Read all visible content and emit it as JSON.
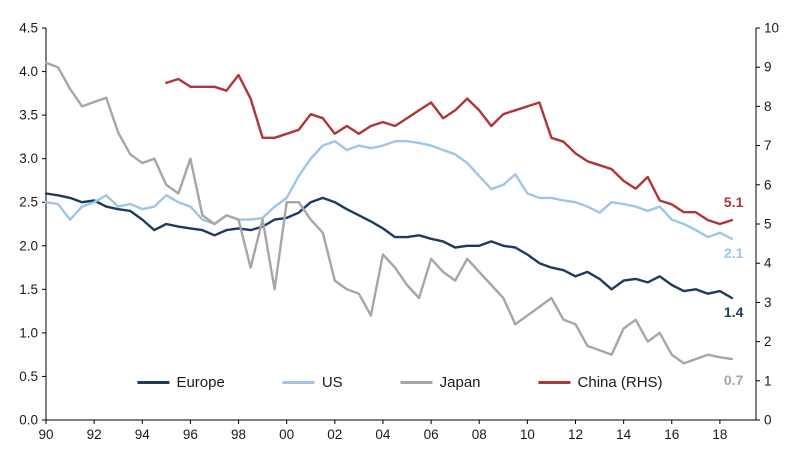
{
  "chart_data": {
    "type": "line",
    "title": "",
    "xlabel": "",
    "ylabel_left": "",
    "ylabel_right": "",
    "grid": false,
    "legend_position": "bottom-inside",
    "x_range": [
      1990,
      2019.5
    ],
    "y_left_range": [
      0,
      4.5
    ],
    "y_right_range": [
      0,
      10
    ],
    "x_tick_values": [
      1990,
      1992,
      1994,
      1996,
      1998,
      2000,
      2002,
      2004,
      2006,
      2008,
      2010,
      2012,
      2014,
      2016,
      2018
    ],
    "x_tick_labels": [
      "90",
      "92",
      "94",
      "96",
      "98",
      "00",
      "02",
      "04",
      "06",
      "08",
      "10",
      "12",
      "14",
      "16",
      "18"
    ],
    "y_left_tick_values": [
      0,
      0.5,
      1.0,
      1.5,
      2.0,
      2.5,
      3.0,
      3.5,
      4.0,
      4.5
    ],
    "y_left_tick_labels": [
      "0.0",
      "0.5",
      "1.0",
      "1.5",
      "2.0",
      "2.5",
      "3.0",
      "3.5",
      "4.0",
      "4.5"
    ],
    "y_right_tick_values": [
      0,
      1,
      2,
      3,
      4,
      5,
      6,
      7,
      8,
      9,
      10
    ],
    "y_right_tick_labels": [
      "0",
      "1",
      "2",
      "3",
      "4",
      "5",
      "6",
      "7",
      "8",
      "9",
      "10"
    ],
    "x": [
      1990,
      1990.5,
      1991,
      1991.5,
      1992,
      1992.5,
      1993,
      1993.5,
      1994,
      1994.5,
      1995,
      1995.5,
      1996,
      1996.5,
      1997,
      1997.5,
      1998,
      1998.5,
      1999,
      1999.5,
      2000,
      2000.5,
      2001,
      2001.5,
      2002,
      2002.5,
      2003,
      2003.5,
      2004,
      2004.5,
      2005,
      2005.5,
      2006,
      2006.5,
      2007,
      2007.5,
      2008,
      2008.5,
      2009,
      2009.5,
      2010,
      2010.5,
      2011,
      2011.5,
      2012,
      2012.5,
      2013,
      2013.5,
      2014,
      2014.5,
      2015,
      2015.5,
      2016,
      2016.5,
      2017,
      2017.5,
      2018,
      2018.5
    ],
    "series": [
      {
        "name": "Europe",
        "axis": "left",
        "color": "#1f3a5f",
        "end_label": "1.4",
        "y": [
          2.6,
          2.58,
          2.55,
          2.5,
          2.52,
          2.45,
          2.42,
          2.4,
          2.3,
          2.18,
          2.25,
          2.22,
          2.2,
          2.18,
          2.12,
          2.18,
          2.2,
          2.18,
          2.22,
          2.3,
          2.32,
          2.38,
          2.5,
          2.55,
          2.5,
          2.42,
          2.35,
          2.28,
          2.2,
          2.1,
          2.1,
          2.12,
          2.08,
          2.05,
          1.98,
          2.0,
          2.0,
          2.05,
          2.0,
          1.98,
          1.9,
          1.8,
          1.75,
          1.72,
          1.65,
          1.7,
          1.62,
          1.5,
          1.6,
          1.62,
          1.58,
          1.65,
          1.55,
          1.48,
          1.5,
          1.45,
          1.48,
          1.4
        ]
      },
      {
        "name": "US",
        "axis": "left",
        "color": "#9fc5e8",
        "end_label": "2.1",
        "y": [
          2.5,
          2.48,
          2.3,
          2.45,
          2.5,
          2.58,
          2.45,
          2.48,
          2.42,
          2.45,
          2.58,
          2.5,
          2.45,
          2.3,
          2.25,
          2.35,
          2.3,
          2.3,
          2.32,
          2.45,
          2.55,
          2.8,
          3.0,
          3.15,
          3.2,
          3.1,
          3.15,
          3.12,
          3.15,
          3.2,
          3.2,
          3.18,
          3.15,
          3.1,
          3.05,
          2.95,
          2.8,
          2.65,
          2.7,
          2.82,
          2.6,
          2.55,
          2.55,
          2.52,
          2.5,
          2.45,
          2.38,
          2.5,
          2.48,
          2.45,
          2.4,
          2.45,
          2.3,
          2.25,
          2.18,
          2.1,
          2.15,
          2.08
        ]
      },
      {
        "name": "Japan",
        "axis": "left",
        "color": "#a6a6a6",
        "end_label": "0.7",
        "y": [
          4.1,
          4.05,
          3.8,
          3.6,
          3.65,
          3.7,
          3.3,
          3.05,
          2.95,
          3.0,
          2.7,
          2.6,
          3.0,
          2.35,
          2.25,
          2.35,
          2.3,
          1.75,
          2.3,
          1.5,
          2.5,
          2.5,
          2.3,
          2.15,
          1.6,
          1.5,
          1.45,
          1.2,
          1.9,
          1.75,
          1.55,
          1.4,
          1.85,
          1.7,
          1.6,
          1.85,
          1.7,
          1.55,
          1.4,
          1.1,
          1.2,
          1.3,
          1.4,
          1.15,
          1.1,
          0.85,
          0.8,
          0.75,
          1.05,
          1.15,
          0.9,
          1.0,
          0.75,
          0.65,
          0.7,
          0.75,
          0.72,
          0.7
        ]
      },
      {
        "name": "China (RHS)",
        "axis": "right",
        "color": "#b13437",
        "end_label": "5.1",
        "x": [
          1995,
          1995.5,
          1996,
          1996.5,
          1997,
          1997.5,
          1998,
          1998.5,
          1999,
          1999.5,
          2000,
          2000.5,
          2001,
          2001.5,
          2002,
          2002.5,
          2003,
          2003.5,
          2004,
          2004.5,
          2005,
          2005.5,
          2006,
          2006.5,
          2007,
          2007.5,
          2008,
          2008.5,
          2009,
          2009.5,
          2010,
          2010.5,
          2011,
          2011.5,
          2012,
          2012.5,
          2013,
          2013.5,
          2014,
          2014.5,
          2015,
          2015.5,
          2016,
          2016.5,
          2017,
          2017.5,
          2018,
          2018.5
        ],
        "y": [
          8.6,
          8.7,
          8.5,
          8.5,
          8.5,
          8.4,
          8.8,
          8.2,
          7.2,
          7.2,
          7.3,
          7.4,
          7.8,
          7.7,
          7.3,
          7.5,
          7.3,
          7.5,
          7.6,
          7.5,
          7.7,
          7.9,
          8.1,
          7.7,
          7.9,
          8.2,
          7.9,
          7.5,
          7.8,
          7.9,
          8.0,
          8.1,
          7.2,
          7.1,
          6.8,
          6.6,
          6.5,
          6.4,
          6.1,
          5.9,
          6.2,
          5.6,
          5.5,
          5.3,
          5.3,
          5.1,
          5.0,
          5.1
        ]
      }
    ],
    "style": {
      "axis_color": "#000000",
      "tick_label_color": "#1a1a1a",
      "background": "#ffffff"
    }
  }
}
